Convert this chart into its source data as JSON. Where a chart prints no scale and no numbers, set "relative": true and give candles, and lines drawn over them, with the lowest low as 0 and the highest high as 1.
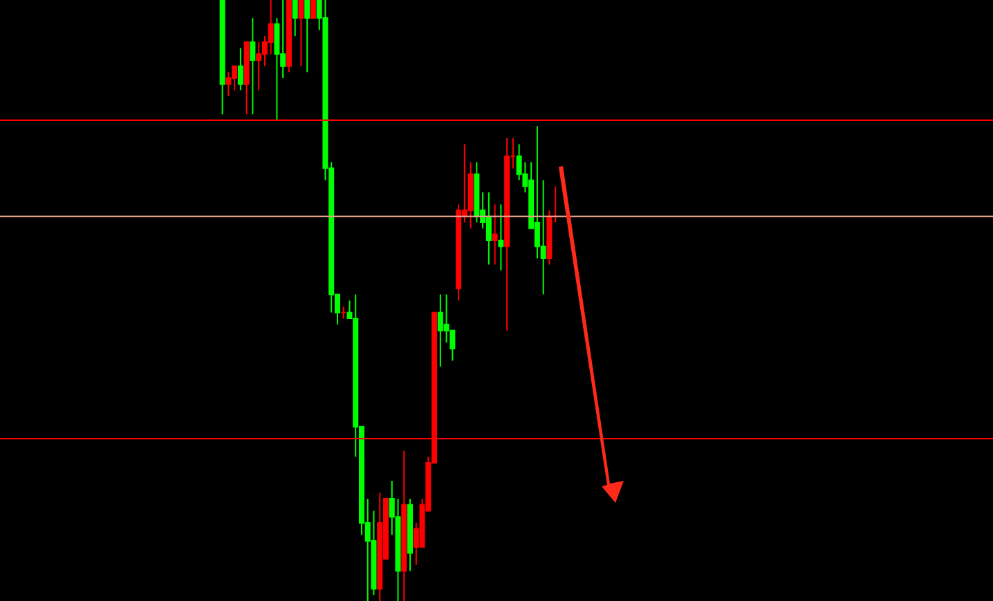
{
  "chart_data": {
    "type": "candlestick",
    "relative": true,
    "categories": [
      null,
      null,
      null,
      null,
      null,
      null,
      null,
      null,
      null,
      null,
      null,
      null,
      null,
      null,
      null,
      null,
      null,
      null,
      null,
      null,
      null,
      null,
      null,
      null,
      null,
      null,
      null,
      null,
      null,
      null,
      null,
      null,
      null,
      null,
      null,
      null,
      null,
      null,
      null,
      null,
      null,
      null,
      null,
      null,
      null,
      null,
      null,
      null,
      null,
      null,
      null,
      null,
      null,
      null,
      null,
      null
    ],
    "ohlc": [
      [
        1.0,
        1.0,
        0.81,
        0.86
      ],
      [
        0.86,
        0.88,
        0.84,
        0.87
      ],
      [
        0.87,
        0.89,
        0.85,
        0.89
      ],
      [
        0.89,
        0.92,
        0.85,
        0.86
      ],
      [
        0.86,
        0.93,
        0.81,
        0.93
      ],
      [
        0.93,
        0.97,
        0.81,
        0.9
      ],
      [
        0.9,
        0.93,
        0.85,
        0.91
      ],
      [
        0.91,
        0.94,
        0.89,
        0.93
      ],
      [
        0.93,
        1.0,
        0.91,
        0.96
      ],
      [
        0.96,
        0.97,
        0.8,
        0.91
      ],
      [
        0.91,
        1.0,
        0.87,
        0.89
      ],
      [
        0.89,
        1.0,
        0.88,
        1.0
      ],
      [
        1.0,
        1.0,
        0.94,
        0.97
      ],
      [
        0.97,
        1.0,
        0.89,
        1.0
      ],
      [
        1.0,
        1.0,
        0.88,
        0.97
      ],
      [
        0.97,
        1.0,
        0.97,
        1.0
      ],
      [
        1.0,
        1.0,
        0.95,
        0.97
      ],
      [
        0.97,
        1.0,
        0.7,
        0.72
      ],
      [
        0.72,
        0.73,
        0.48,
        0.51
      ],
      [
        0.51,
        0.51,
        0.46,
        0.48
      ],
      [
        0.48,
        0.49,
        0.47,
        0.48
      ],
      [
        0.48,
        0.5,
        0.47,
        0.47
      ],
      [
        0.47,
        0.51,
        0.24,
        0.29
      ],
      [
        0.29,
        0.29,
        0.11,
        0.13
      ],
      [
        0.13,
        0.17,
        0.0,
        0.1
      ],
      [
        0.1,
        0.15,
        0.01,
        0.02
      ],
      [
        0.02,
        0.18,
        0.0,
        0.13
      ],
      [
        0.07,
        0.17,
        0.07,
        0.17
      ],
      [
        0.17,
        0.2,
        0.11,
        0.14
      ],
      [
        0.14,
        0.17,
        0.0,
        0.05
      ],
      [
        0.05,
        0.25,
        0.0,
        0.16
      ],
      [
        0.16,
        0.17,
        0.05,
        0.08
      ],
      [
        0.09,
        0.13,
        0.06,
        0.12
      ],
      [
        0.09,
        0.17,
        0.09,
        0.16
      ],
      [
        0.15,
        0.24,
        0.15,
        0.23
      ],
      [
        0.23,
        0.48,
        0.23,
        0.48
      ],
      [
        0.48,
        0.51,
        0.39,
        0.45
      ],
      [
        0.46,
        0.51,
        0.43,
        0.45
      ],
      [
        0.45,
        0.45,
        0.4,
        0.42
      ],
      [
        0.52,
        0.66,
        0.5,
        0.65
      ],
      [
        0.64,
        0.76,
        0.63,
        0.65
      ],
      [
        0.65,
        0.73,
        0.62,
        0.71
      ],
      [
        0.71,
        0.73,
        0.63,
        0.64
      ],
      [
        0.65,
        0.68,
        0.62,
        0.63
      ],
      [
        0.64,
        0.68,
        0.56,
        0.6
      ],
      [
        0.6,
        0.66,
        0.56,
        0.61
      ],
      [
        0.6,
        0.66,
        0.55,
        0.59
      ],
      [
        0.59,
        0.77,
        0.45,
        0.74
      ],
      [
        0.74,
        0.77,
        0.72,
        0.74
      ],
      [
        0.74,
        0.76,
        0.7,
        0.71
      ],
      [
        0.71,
        0.73,
        0.68,
        0.69
      ],
      [
        0.7,
        0.73,
        0.62,
        0.62
      ],
      [
        0.63,
        0.79,
        0.57,
        0.59
      ],
      [
        0.59,
        0.7,
        0.51,
        0.57
      ],
      [
        0.57,
        0.65,
        0.56,
        0.64
      ],
      [
        0.64,
        0.69,
        0.63,
        0.64
      ]
    ],
    "ref_lines": [
      {
        "axis": "y",
        "value": 0.8,
        "color": "#ff0000"
      },
      {
        "axis": "y",
        "value": 0.64,
        "color": "#e8a090"
      },
      {
        "axis": "y",
        "value": 0.27,
        "color": "#ff0000"
      }
    ]
  }
}
